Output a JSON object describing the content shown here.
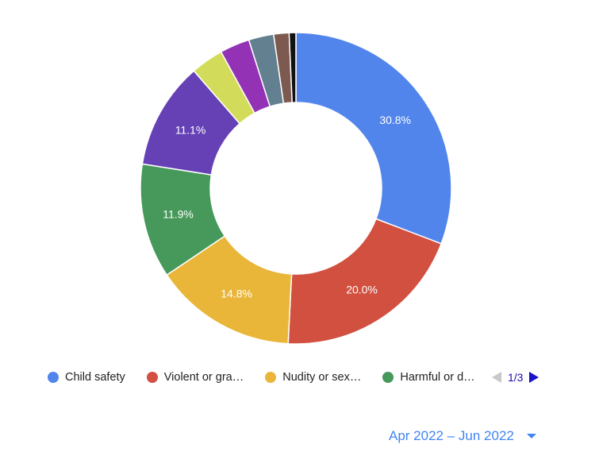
{
  "chart_data": {
    "type": "pie",
    "donut": true,
    "slices": [
      {
        "name": "Child safety",
        "value": 30.8,
        "label": "30.8%",
        "color": "#5285ec"
      },
      {
        "name": "Violent or gra…",
        "value": 20.0,
        "label": "20.0%",
        "color": "#d1503f"
      },
      {
        "name": "Nudity or sex…",
        "value": 14.8,
        "label": "14.8%",
        "color": "#e9b63a"
      },
      {
        "name": "Harmful or d…",
        "value": 11.9,
        "label": "11.9%",
        "color": "#46995a"
      },
      {
        "name": "",
        "value": 11.1,
        "label": "11.1%",
        "color": "#6541b5"
      },
      {
        "name": "",
        "value": 3.4,
        "label": "",
        "color": "#d3dc5a"
      },
      {
        "name": "",
        "value": 3.1,
        "label": "",
        "color": "#9432b6"
      },
      {
        "name": "",
        "value": 2.6,
        "label": "",
        "color": "#62808f"
      },
      {
        "name": "",
        "value": 1.6,
        "label": "",
        "color": "#7c5a4f"
      },
      {
        "name": "",
        "value": 0.7,
        "label": "",
        "color": "#111111"
      }
    ]
  },
  "legend": {
    "items": [
      {
        "label": "Child safety",
        "color": "#5285ec"
      },
      {
        "label": "Violent or gra…",
        "color": "#d1503f"
      },
      {
        "label": "Nudity or sex…",
        "color": "#e9b63a"
      },
      {
        "label": "Harmful or d…",
        "color": "#46995a"
      }
    ],
    "page": "1/3"
  },
  "date_range": {
    "label": "Apr 2022 – Jun 2022"
  },
  "colors": {
    "pager_active": "#1a12c7",
    "pager_disabled": "#c8c8c8",
    "link": "#4285f4"
  }
}
